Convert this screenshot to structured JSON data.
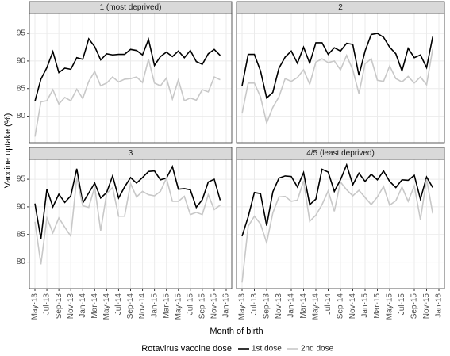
{
  "chart_data": {
    "type": "line",
    "x_label": "Month of birth",
    "y_label": "Vaccine uptake (%)",
    "legend_title": "Rotavirus vaccine dose",
    "categories": [
      "May-13",
      null,
      "Jul-13",
      null,
      "Sep-13",
      null,
      "Nov-13",
      null,
      "Jan-14",
      null,
      "Mar-14",
      null,
      "May-14",
      null,
      "Jul-14",
      null,
      "Sep-14",
      null,
      "Nov-14",
      null,
      "Jan-15",
      null,
      "Mar-15",
      null,
      "May-15",
      null,
      "Jul-15",
      null,
      "Sep-15",
      null,
      "Nov-15",
      null,
      "Jan-16"
    ],
    "ylim": [
      75.2,
      98.6
    ],
    "yticks": [
      80,
      85,
      90,
      95
    ],
    "grid": true,
    "facets": [
      {
        "title": "1 (most deprived)",
        "series": [
          {
            "name": "1st dose",
            "color": "#000000",
            "values": [
              82.7,
              86.7,
              88.8,
              91.7,
              87.9,
              88.7,
              88.5,
              90.6,
              90.3,
              94,
              92.6,
              90.2,
              91.3,
              91.1,
              91.2,
              91.2,
              92.1,
              91.9,
              91.1,
              93.9,
              89.2,
              90.8,
              91.6,
              90.8,
              91.8,
              90.6,
              91.9,
              89.9,
              89.4,
              91.3,
              92.1,
              91.0,
              null
            ]
          },
          {
            "name": "2nd dose",
            "color": "#c8c8c8",
            "values": [
              76.3,
              82.6,
              82.8,
              84.8,
              82.2,
              83.4,
              82.8,
              84.9,
              83.2,
              86.3,
              88.1,
              85.5,
              86,
              87.1,
              86.2,
              86.7,
              86.8,
              87.1,
              86.1,
              90.3,
              86,
              85.5,
              86.9,
              83.1,
              86.6,
              82.8,
              83.3,
              82.9,
              84.8,
              84.4,
              87.1,
              86.6,
              null
            ]
          }
        ]
      },
      {
        "title": "2",
        "series": [
          {
            "name": "1st dose",
            "color": "#000000",
            "values": [
              85.5,
              91.2,
              91.2,
              88.2,
              83.3,
              84.3,
              88.7,
              90.7,
              91.8,
              89.6,
              92.5,
              89.6,
              93.3,
              93.3,
              91.2,
              92.4,
              91.8,
              93.2,
              93,
              87.4,
              91.8,
              94.8,
              95,
              94.3,
              92.5,
              91.3,
              88.2,
              92.3,
              90.6,
              91.1,
              88.8,
              94.4,
              null
            ]
          },
          {
            "name": "2nd dose",
            "color": "#c8c8c8",
            "values": [
              80.5,
              86,
              86,
              83.5,
              78.8,
              81.6,
              83.5,
              86.8,
              86.3,
              87,
              88.4,
              85.8,
              89.8,
              90.4,
              89.7,
              90,
              88.4,
              91,
              88.4,
              84.1,
              89.5,
              90.4,
              86.5,
              86.3,
              89.1,
              86.8,
              86.2,
              87.2,
              86,
              87.1,
              85.7,
              92.2,
              null
            ]
          }
        ]
      },
      {
        "title": "3",
        "series": [
          {
            "name": "1st dose",
            "color": "#000000",
            "values": [
              90.6,
              84.2,
              93.2,
              90,
              92.3,
              90.8,
              92,
              96.9,
              90.7,
              92.5,
              94.3,
              91.6,
              92.6,
              95.6,
              91.6,
              93.6,
              95.3,
              94.3,
              95.3,
              96.4,
              96.5,
              94.9,
              95.2,
              97.3,
              93.2,
              93.3,
              93.1,
              89.9,
              91.3,
              94.5,
              95,
              91.2,
              null
            ]
          },
          {
            "name": "2nd dose",
            "color": "#c8c8c8",
            "values": [
              87.3,
              79.6,
              88,
              85.3,
              88,
              86.3,
              84.7,
              95.3,
              90.2,
              89.9,
              93.6,
              85.7,
              92.4,
              93.5,
              88.3,
              88.3,
              94.2,
              91.8,
              92.8,
              92.2,
              92,
              92.8,
              95.2,
              91,
              91,
              91.9,
              88.6,
              89,
              88.6,
              92.2,
              89.5,
              90.3,
              null
            ]
          }
        ]
      },
      {
        "title": "4/5 (least deprived)",
        "series": [
          {
            "name": "1st dose",
            "color": "#000000",
            "values": [
              84.7,
              88.2,
              92.6,
              92.4,
              86.6,
              92.7,
              95.2,
              95.6,
              95.5,
              93.6,
              96.2,
              90.4,
              91.4,
              96.8,
              96.3,
              92.8,
              94.9,
              97.6,
              94,
              96.1,
              94.6,
              95.9,
              94.9,
              96.5,
              94.6,
              93.5,
              94.9,
              94.8,
              95.7,
              91.4,
              95.4,
              93.5,
              null
            ]
          },
          {
            "name": "2nd dose",
            "color": "#c8c8c8",
            "values": [
              76.3,
              86.5,
              88.3,
              86.9,
              83.5,
              88.9,
              91.8,
              91.9,
              91,
              91.2,
              94.7,
              87.4,
              88.5,
              90.4,
              92.9,
              89.2,
              94.5,
              93.1,
              92,
              93,
              91.7,
              90.4,
              91.8,
              93.7,
              90.3,
              91.1,
              93.6,
              91,
              93.8,
              87.7,
              95,
              88.8,
              null
            ]
          }
        ]
      }
    ]
  }
}
